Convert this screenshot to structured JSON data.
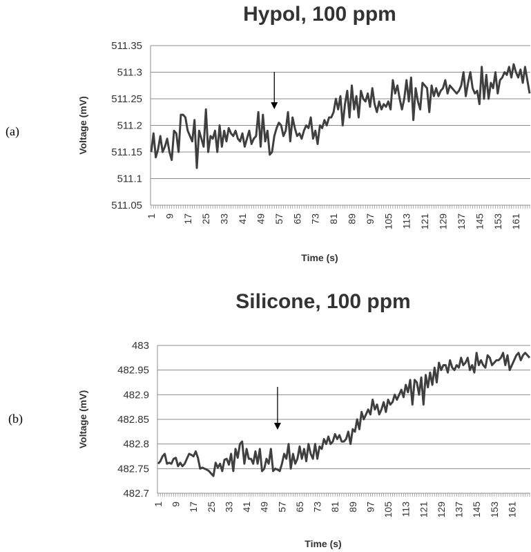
{
  "chart_data": [
    {
      "type": "line",
      "panel_label": "(a)",
      "title": "Hypol, 100 ppm",
      "xlabel": "Time (s)",
      "ylabel": "Voltage (mV)",
      "ylim": [
        511.05,
        511.35
      ],
      "yticks": [
        "511.05",
        "511.1",
        "511.15",
        "511.2",
        "511.25",
        "511.3",
        "511.35"
      ],
      "xticks": [
        "1",
        "9",
        "17",
        "25",
        "33",
        "41",
        "49",
        "57",
        "65",
        "73",
        "81",
        "89",
        "97",
        "105",
        "113",
        "121",
        "129",
        "137",
        "145",
        "153",
        "161"
      ],
      "grid": "horizontal",
      "arrow_at_x": 55,
      "line_color": "#3f3f3f",
      "series": [
        {
          "x_start": 1,
          "x_step": 1,
          "values": [
            511.15,
            511.185,
            511.14,
            511.155,
            511.18,
            511.15,
            511.16,
            511.175,
            511.15,
            511.135,
            511.19,
            511.185,
            511.15,
            511.22,
            511.22,
            511.215,
            511.19,
            511.18,
            511.17,
            511.21,
            511.12,
            511.19,
            511.175,
            511.16,
            511.23,
            511.15,
            511.18,
            511.175,
            511.19,
            511.15,
            511.2,
            511.16,
            511.19,
            511.17,
            511.195,
            511.185,
            511.18,
            511.19,
            511.175,
            511.17,
            511.185,
            511.16,
            511.175,
            511.19,
            511.165,
            511.175,
            511.18,
            511.225,
            511.16,
            511.22,
            511.17,
            511.19,
            511.145,
            511.15,
            511.18,
            511.195,
            511.205,
            511.2,
            511.18,
            511.19,
            511.225,
            511.17,
            511.215,
            511.195,
            511.18,
            511.185,
            511.175,
            511.19,
            511.2,
            511.195,
            511.215,
            511.175,
            511.19,
            511.165,
            511.2,
            511.195,
            511.21,
            511.2,
            511.215,
            511.215,
            511.225,
            511.25,
            511.23,
            511.255,
            511.2,
            511.24,
            511.265,
            511.215,
            511.275,
            511.23,
            511.255,
            511.215,
            511.265,
            511.25,
            511.245,
            511.26,
            511.235,
            511.27,
            511.24,
            511.225,
            511.245,
            511.23,
            511.24,
            511.235,
            511.245,
            511.23,
            511.285,
            511.26,
            511.275,
            511.25,
            511.23,
            511.25,
            511.285,
            511.245,
            511.29,
            511.21,
            511.27,
            511.245,
            511.23,
            511.28,
            511.275,
            511.27,
            511.225,
            511.275,
            511.255,
            511.27,
            511.255,
            511.265,
            511.27,
            511.285,
            511.26,
            511.275,
            511.27,
            511.265,
            511.26,
            511.265,
            511.275,
            511.3,
            511.255,
            511.28,
            511.3,
            511.27,
            511.26,
            511.265,
            511.24,
            511.31,
            511.25,
            511.295,
            511.25,
            511.28,
            511.27,
            511.3,
            511.26,
            511.285,
            511.29,
            511.3,
            511.295,
            511.31,
            511.29,
            511.315,
            511.3,
            511.29,
            511.305,
            511.28,
            511.31,
            511.285,
            511.26
          ]
        }
      ]
    },
    {
      "type": "line",
      "panel_label": "(b)",
      "title": "Silicone, 100 ppm",
      "xlabel": "Time (s)",
      "ylabel": "Voltage (mV)",
      "ylim": [
        482.7,
        483.0
      ],
      "yticks": [
        "482.7",
        "482.75",
        "482.8",
        "482.85",
        "482.9",
        "482.95",
        "483"
      ],
      "xticks": [
        "1",
        "9",
        "17",
        "25",
        "33",
        "41",
        "49",
        "57",
        "65",
        "73",
        "81",
        "89",
        "97",
        "105",
        "113",
        "121",
        "129",
        "137",
        "145",
        "153",
        "161"
      ],
      "grid": "horizontal",
      "arrow_at_x": 55,
      "line_color": "#3f3f3f",
      "series": [
        {
          "x_start": 1,
          "x_step": 1,
          "values": [
            482.76,
            482.765,
            482.775,
            482.78,
            482.76,
            482.762,
            482.76,
            482.77,
            482.772,
            482.755,
            482.762,
            482.755,
            482.76,
            482.77,
            482.78,
            482.778,
            482.775,
            482.785,
            482.772,
            482.75,
            482.752,
            482.75,
            482.748,
            482.745,
            482.74,
            482.735,
            482.762,
            482.752,
            482.76,
            482.745,
            482.768,
            482.77,
            482.758,
            482.78,
            482.745,
            482.79,
            482.772,
            482.8,
            482.805,
            482.76,
            482.79,
            482.77,
            482.77,
            482.76,
            482.785,
            482.76,
            482.79,
            482.745,
            482.75,
            482.77,
            482.76,
            482.79,
            482.745,
            482.75,
            482.748,
            482.745,
            482.76,
            482.78,
            482.77,
            482.8,
            482.75,
            482.78,
            482.76,
            482.77,
            482.795,
            482.77,
            482.79,
            482.765,
            482.8,
            482.78,
            482.77,
            482.8,
            482.77,
            482.795,
            482.79,
            482.81,
            482.8,
            482.815,
            482.8,
            482.805,
            482.82,
            482.81,
            482.818,
            482.805,
            482.805,
            482.81,
            482.825,
            482.8,
            482.83,
            482.825,
            482.85,
            482.83,
            482.865,
            482.85,
            482.86,
            482.87,
            482.86,
            482.89,
            482.87,
            482.88,
            482.86,
            482.87,
            482.885,
            482.865,
            482.89,
            482.88,
            482.885,
            482.9,
            482.89,
            482.9,
            482.91,
            482.895,
            482.92,
            482.905,
            482.93,
            482.88,
            482.93,
            482.925,
            482.9,
            482.935,
            482.88,
            482.94,
            482.915,
            482.945,
            482.92,
            482.955,
            482.925,
            482.965,
            482.95,
            482.96,
            482.96,
            482.945,
            482.97,
            482.955,
            482.95,
            482.96,
            482.955,
            482.975,
            482.96,
            482.965,
            482.975,
            482.95,
            482.96,
            482.945,
            482.985,
            482.96,
            482.97,
            482.96,
            482.955,
            482.98,
            482.975,
            482.96,
            482.965,
            482.97,
            482.97,
            482.975,
            482.985,
            482.96,
            482.98,
            482.95,
            482.96,
            482.97,
            482.98,
            482.985,
            482.97,
            482.98,
            482.985,
            482.98,
            482.975
          ]
        }
      ]
    }
  ]
}
